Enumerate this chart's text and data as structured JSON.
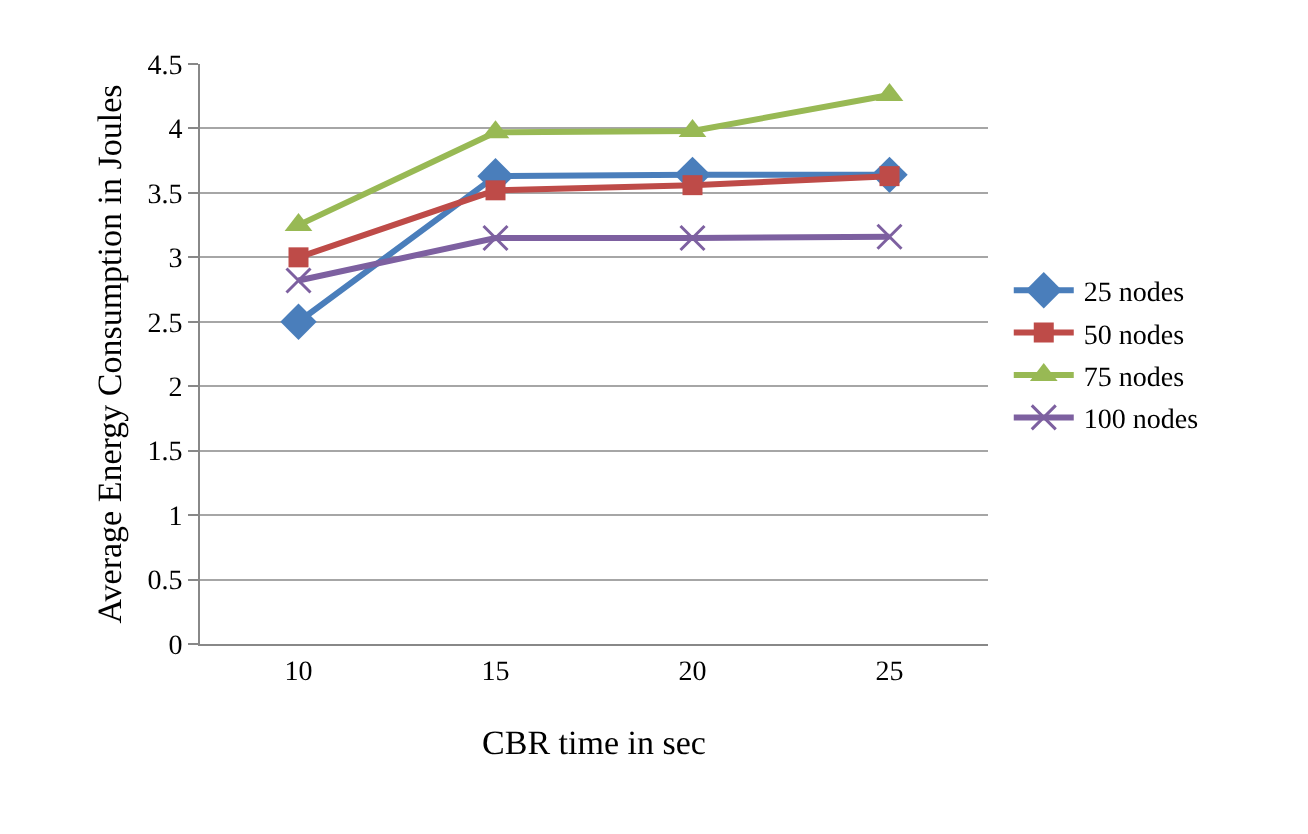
{
  "chart_data": {
    "type": "line",
    "xlabel": "CBR time in sec",
    "ylabel": "Average Energy Consumption in Joules",
    "categories": [
      "10",
      "15",
      "20",
      "25"
    ],
    "series": [
      {
        "name": "25 nodes",
        "color": "#4a7ebb",
        "marker": "diamond",
        "values": [
          2.5,
          3.63,
          3.64,
          3.64
        ]
      },
      {
        "name": "50 nodes",
        "color": "#be4b48",
        "marker": "square",
        "values": [
          3.0,
          3.52,
          3.56,
          3.63
        ]
      },
      {
        "name": "75 nodes",
        "color": "#98b954",
        "marker": "triangle",
        "values": [
          3.25,
          3.97,
          3.98,
          4.26
        ]
      },
      {
        "name": "100 nodes",
        "color": "#7d60a0",
        "marker": "cross",
        "values": [
          2.82,
          3.15,
          3.15,
          3.16
        ]
      }
    ],
    "ylim": [
      0,
      4.5
    ],
    "yticks": [
      0,
      0.5,
      1,
      1.5,
      2,
      2.5,
      3,
      3.5,
      4,
      4.5
    ],
    "grid": "y",
    "legend": "right",
    "line_style": "solid"
  }
}
